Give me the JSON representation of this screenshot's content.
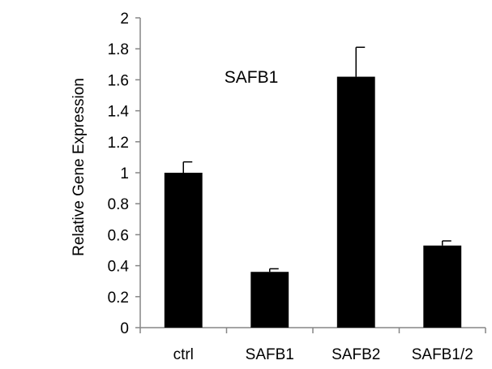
{
  "chart_data": {
    "type": "bar",
    "title": "",
    "annotation": "SAFB1",
    "xlabel": "",
    "ylabel": "Relative Gene Expression",
    "categories": [
      "ctrl",
      "SAFB1",
      "SAFB2",
      "SAFB1/2"
    ],
    "values": [
      1.0,
      0.36,
      1.62,
      0.53
    ],
    "error_bars": [
      0.07,
      0.02,
      0.19,
      0.03
    ],
    "ylim": [
      0,
      2
    ],
    "yticks": [
      "0",
      "0.2",
      "0.4",
      "0.6",
      "0.8",
      "1",
      "1.2",
      "1.4",
      "1.6",
      "1.8",
      "2"
    ],
    "grid": false,
    "legend": "none",
    "bar_color": "#000000"
  }
}
